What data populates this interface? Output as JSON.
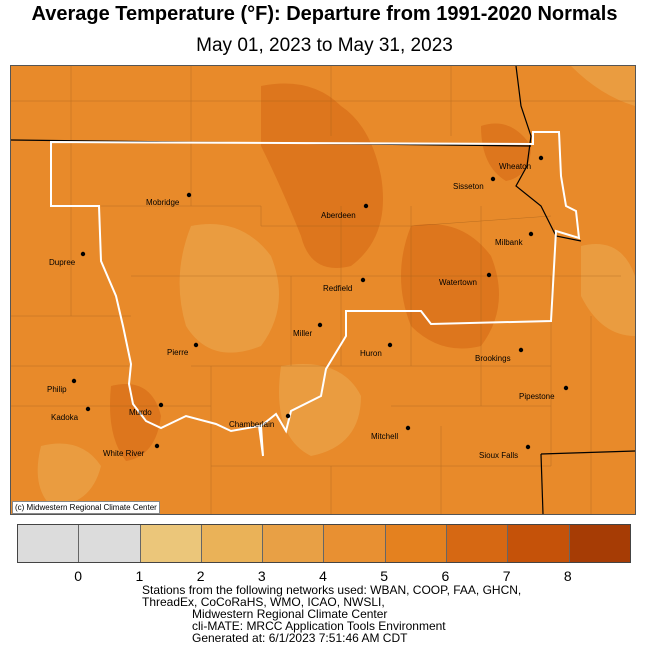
{
  "title": "Average Temperature (°F): Departure from 1991-2020 Normals",
  "subtitle": "May 01, 2023 to May 31, 2023",
  "copyright": "(c) Midwestern Regional Climate Center",
  "colors": {
    "base": "#e88a2a",
    "darker": "#d9701a",
    "lighter": "#eba44a",
    "border": "#ffffff",
    "state_line": "#000000"
  },
  "stations": [
    "Mobridge",
    "Aberdeen",
    "Sisseton",
    "Wheaton",
    "Dupree",
    "Milbank",
    "Redfield",
    "Watertown",
    "Miller",
    "Pierre",
    "Huron",
    "Brookings",
    "Philip",
    "Pipestone",
    "Kadoka",
    "Murdo",
    "Chamberlain",
    "Mitchell",
    "White River",
    "Sioux Falls"
  ],
  "legend": {
    "colors": [
      "#dcdcdc",
      "#dcdcdc",
      "#ebc67a",
      "#eab258",
      "#e8a045",
      "#e89032",
      "#e4811f",
      "#d66813",
      "#c55209",
      "#a63c05"
    ],
    "ticks": [
      "0",
      "1",
      "2",
      "3",
      "4",
      "5",
      "6",
      "7",
      "8"
    ]
  },
  "notes": [
    "Stations from the following networks used: WBAN, COOP, FAA, GHCN,",
    "ThreadEx, CoCoRaHS, WMO, ICAO, NWSLI,",
    "Midwestern Regional Climate Center",
    "cli-MATE: MRCC Application Tools Environment",
    "Generated at: 6/1/2023 7:51:46 AM CDT"
  ]
}
